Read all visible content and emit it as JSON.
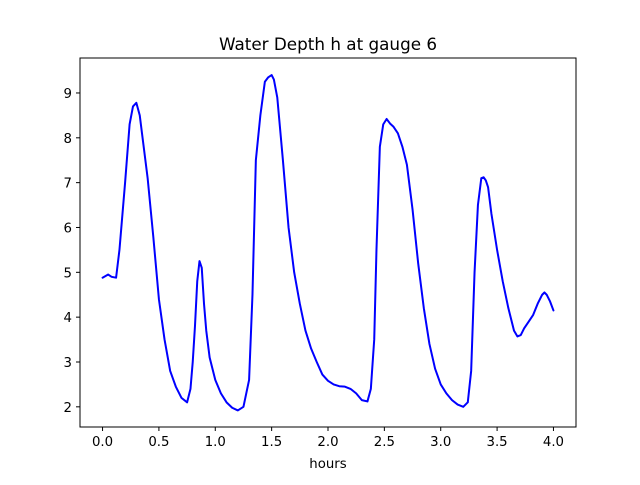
{
  "chart_data": {
    "type": "line",
    "title": "Water Depth h at gauge 6",
    "xlabel": "hours",
    "ylabel": "",
    "xlim": [
      -0.2,
      4.2
    ],
    "ylim": [
      1.55,
      9.78
    ],
    "x_ticks": [
      0.0,
      0.5,
      1.0,
      1.5,
      2.0,
      2.5,
      3.0,
      3.5,
      4.0
    ],
    "x_tick_labels": [
      "0.0",
      "0.5",
      "1.0",
      "1.5",
      "2.0",
      "2.5",
      "3.0",
      "3.5",
      "4.0"
    ],
    "y_ticks": [
      2,
      3,
      4,
      5,
      6,
      7,
      8,
      9
    ],
    "y_tick_labels": [
      "2",
      "3",
      "4",
      "5",
      "6",
      "7",
      "8",
      "9"
    ],
    "grid": false,
    "legend": "none",
    "line_color": "#0000ff",
    "series": [
      {
        "x": [
          0.0,
          0.05,
          0.08,
          0.12,
          0.15,
          0.2,
          0.24,
          0.27,
          0.3,
          0.33,
          0.35,
          0.4,
          0.45,
          0.5,
          0.55,
          0.6,
          0.65,
          0.7,
          0.75,
          0.78,
          0.8,
          0.82,
          0.84,
          0.86,
          0.88,
          0.9,
          0.92,
          0.95,
          1.0,
          1.05,
          1.1,
          1.15,
          1.2,
          1.25,
          1.3,
          1.33,
          1.36,
          1.4,
          1.44,
          1.47,
          1.5,
          1.52,
          1.55,
          1.6,
          1.65,
          1.7,
          1.75,
          1.8,
          1.85,
          1.9,
          1.95,
          2.0,
          2.05,
          2.1,
          2.15,
          2.2,
          2.25,
          2.3,
          2.35,
          2.38,
          2.41,
          2.43,
          2.46,
          2.49,
          2.52,
          2.55,
          2.58,
          2.62,
          2.66,
          2.7,
          2.75,
          2.8,
          2.85,
          2.9,
          2.95,
          3.0,
          3.05,
          3.1,
          3.15,
          3.2,
          3.24,
          3.27,
          3.3,
          3.33,
          3.36,
          3.38,
          3.4,
          3.42,
          3.45,
          3.5,
          3.55,
          3.6,
          3.65,
          3.68,
          3.71,
          3.74,
          3.78,
          3.82,
          3.86,
          3.9,
          3.92,
          3.94,
          3.97,
          4.0
        ],
        "y": [
          4.88,
          4.95,
          4.9,
          4.88,
          5.5,
          7.0,
          8.3,
          8.7,
          8.78,
          8.5,
          8.1,
          7.1,
          5.8,
          4.4,
          3.5,
          2.8,
          2.45,
          2.2,
          2.1,
          2.4,
          3.0,
          3.8,
          4.8,
          5.25,
          5.1,
          4.3,
          3.7,
          3.1,
          2.6,
          2.3,
          2.1,
          1.98,
          1.92,
          2.0,
          2.6,
          4.5,
          7.5,
          8.5,
          9.25,
          9.35,
          9.4,
          9.3,
          8.9,
          7.5,
          6.0,
          5.0,
          4.3,
          3.7,
          3.3,
          3.0,
          2.72,
          2.58,
          2.5,
          2.46,
          2.45,
          2.4,
          2.3,
          2.15,
          2.12,
          2.4,
          3.5,
          5.5,
          7.8,
          8.3,
          8.42,
          8.32,
          8.25,
          8.1,
          7.8,
          7.4,
          6.4,
          5.2,
          4.2,
          3.4,
          2.85,
          2.5,
          2.3,
          2.15,
          2.05,
          2.0,
          2.1,
          2.8,
          5.0,
          6.5,
          7.1,
          7.12,
          7.05,
          6.9,
          6.3,
          5.5,
          4.8,
          4.2,
          3.7,
          3.57,
          3.6,
          3.75,
          3.9,
          4.05,
          4.3,
          4.5,
          4.55,
          4.5,
          4.35,
          4.15
        ]
      }
    ]
  }
}
